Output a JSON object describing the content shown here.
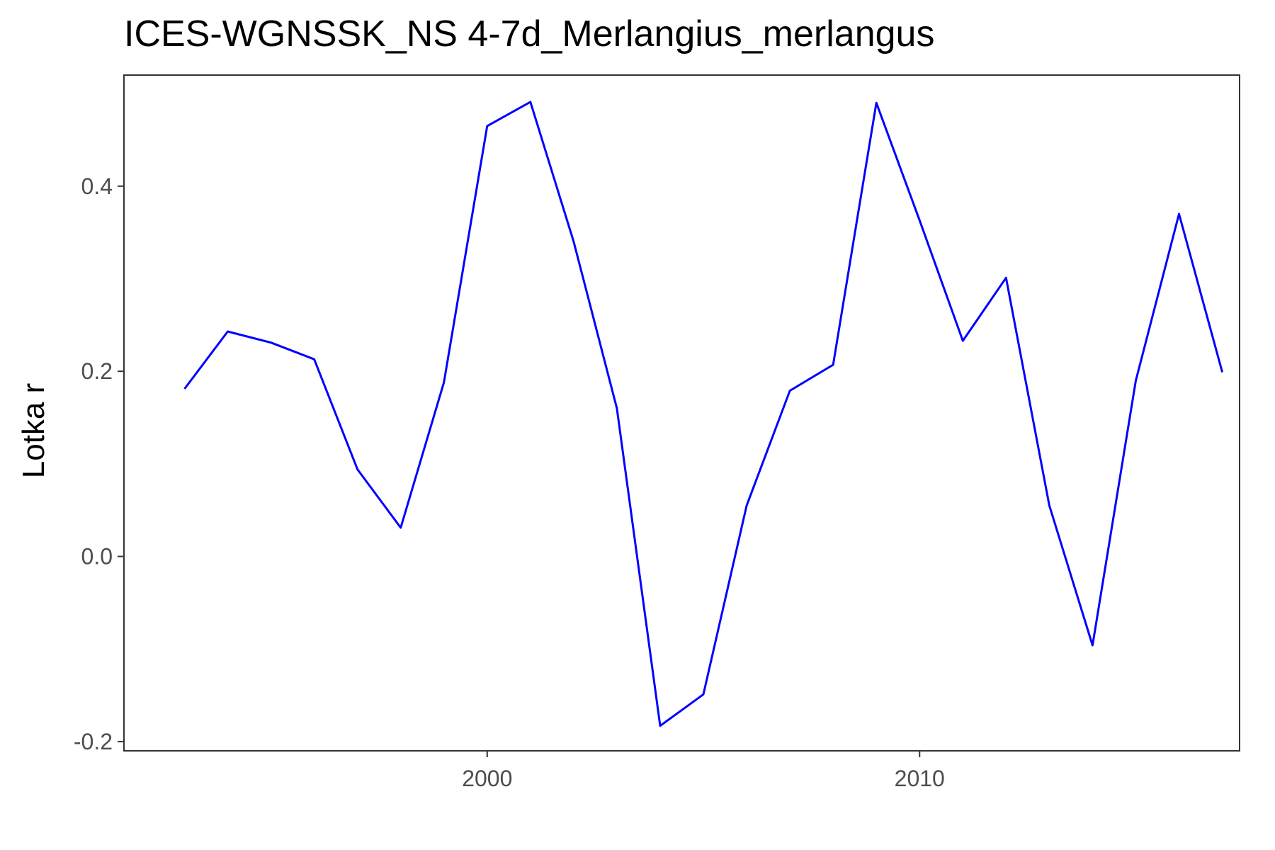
{
  "chart_data": {
    "type": "line",
    "title": "ICES-WGNSSK_NS 4-7d_Merlangius_merlangus",
    "xlabel": "",
    "ylabel": "Lotka r",
    "xlim": [
      1991.6,
      2017.4
    ],
    "ylim": [
      -0.21,
      0.52
    ],
    "x_ticks": [
      2000,
      2010
    ],
    "x_tick_labels": [
      "2000",
      "2010"
    ],
    "y_ticks": [
      -0.2,
      0.0,
      0.2,
      0.4
    ],
    "y_tick_labels": [
      "-0.2",
      "0.0",
      "0.2",
      "0.4"
    ],
    "grid": false,
    "legend": "none",
    "series": [
      {
        "color": "#0000ff",
        "x": [
          1993,
          1994,
          1995,
          1996,
          1997,
          1998,
          1999,
          2000,
          2001,
          2002,
          2003,
          2004,
          2005,
          2006,
          2007,
          2008,
          2009,
          2010,
          2011,
          2012,
          2013,
          2014,
          2015,
          2016,
          2017
        ],
        "values": [
          0.181,
          0.243,
          0.231,
          0.213,
          0.094,
          0.031,
          0.188,
          0.465,
          0.491,
          0.34,
          0.16,
          -0.183,
          -0.149,
          0.055,
          0.179,
          0.207,
          0.49,
          0.363,
          0.233,
          0.301,
          0.055,
          -0.096,
          0.19,
          0.37,
          0.199
        ]
      }
    ]
  }
}
